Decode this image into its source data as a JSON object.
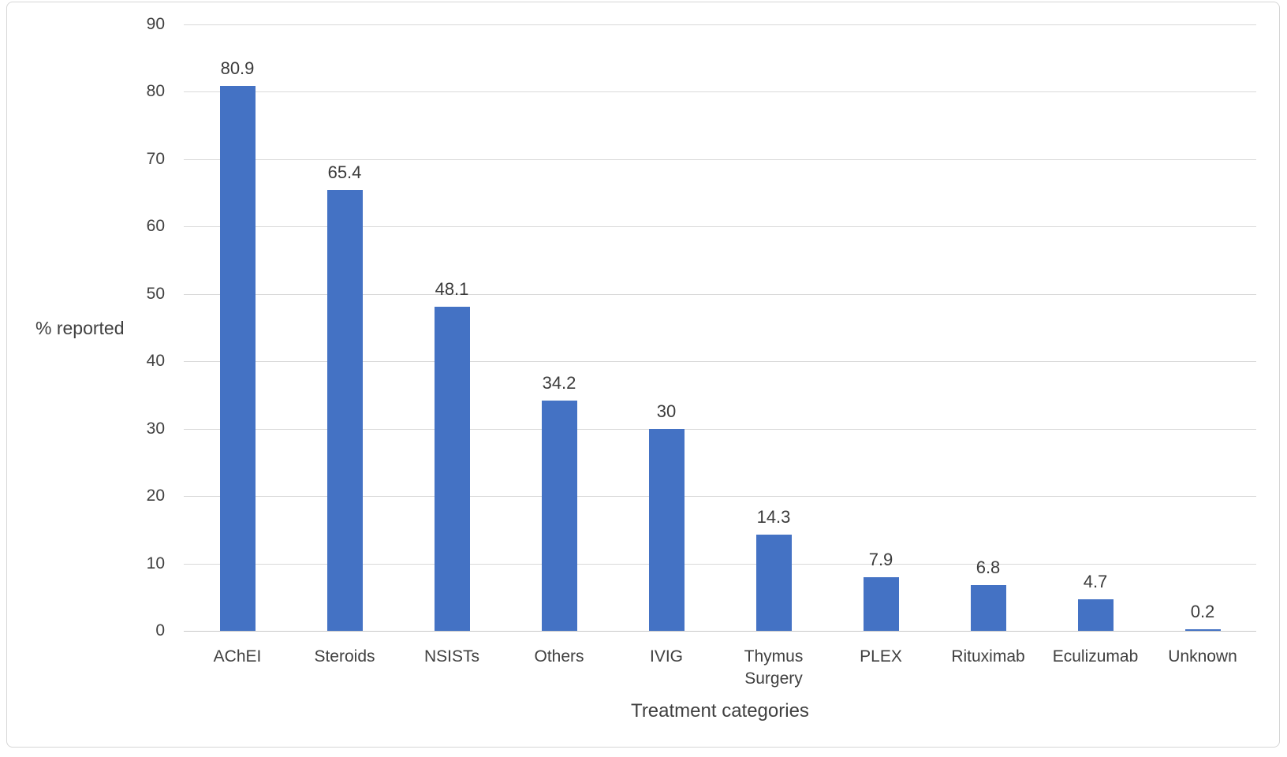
{
  "chart_data": {
    "type": "bar",
    "categories": [
      "AChEI",
      "Steroids",
      "NSISTs",
      "Others",
      "IVIG",
      "Thymus Surgery",
      "PLEX",
      "Rituximab",
      "Eculizumab",
      "Unknown"
    ],
    "values": [
      80.9,
      65.4,
      48.1,
      34.2,
      30,
      14.3,
      7.9,
      6.8,
      4.7,
      0.2
    ],
    "value_labels": [
      "80.9",
      "65.4",
      "48.1",
      "34.2",
      "30",
      "14.3",
      "7.9",
      "6.8",
      "4.7",
      "0.2"
    ],
    "title": "",
    "xlabel": "Treatment categories",
    "ylabel": "% reported",
    "ylim": [
      0,
      90
    ],
    "ytick_step": 10,
    "ytick_labels": [
      "0",
      "10",
      "20",
      "30",
      "40",
      "50",
      "60",
      "70",
      "80",
      "90"
    ],
    "grid": true,
    "legend": false,
    "bar_color": "#4472C4",
    "gridline_color": "#d9d9d9",
    "axis_line_color": "#c8c8c8",
    "text_color": "#404040",
    "frame_border_color": "#d6d6d6",
    "background_color": "#ffffff"
  }
}
